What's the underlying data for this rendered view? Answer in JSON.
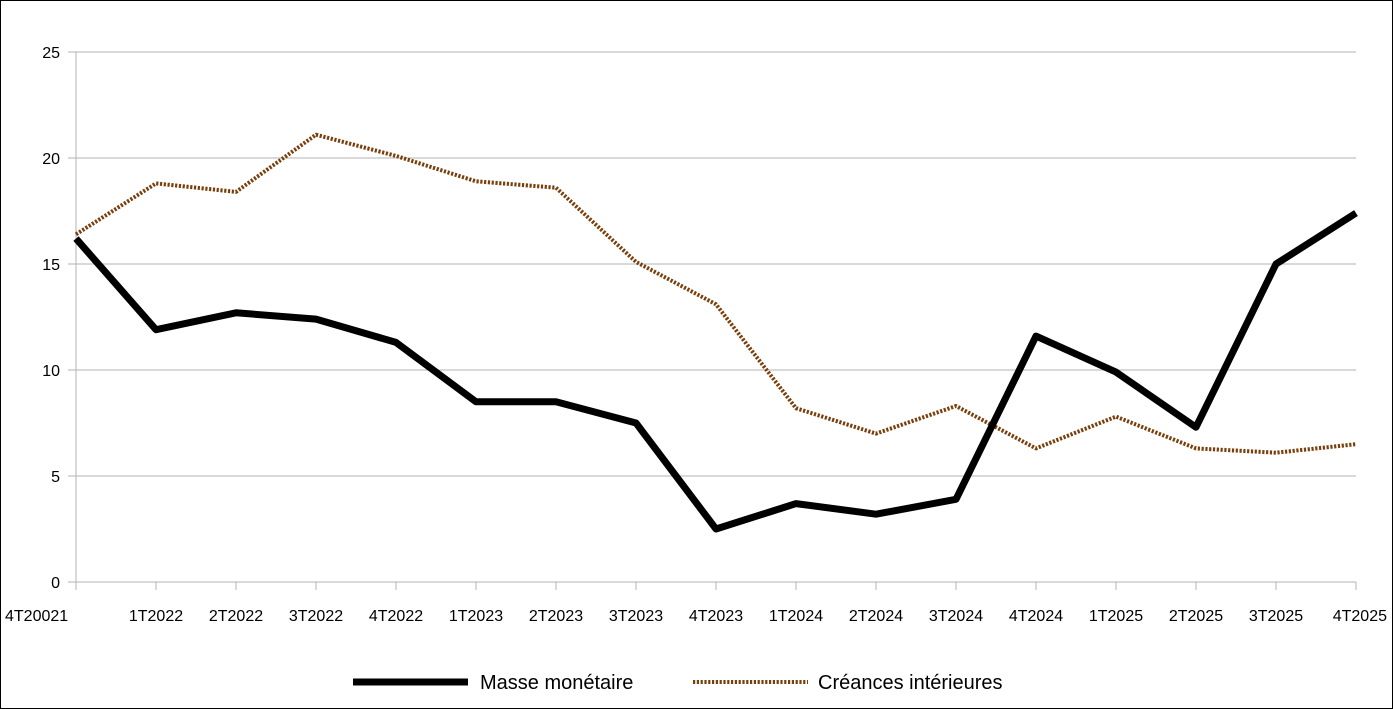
{
  "chart_data": {
    "type": "line",
    "title": "",
    "xlabel": "",
    "ylabel": "",
    "categories": [
      "4T20021",
      "1T2022",
      "2T2022",
      "3T2022",
      "4T2022",
      "1T2023",
      "2T2023",
      "3T2023",
      "4T2023",
      "1T2024",
      "2T2024",
      "3T2024",
      "4T2024",
      "1T2025",
      "2T2025",
      "3T2025",
      "4T2025"
    ],
    "ylim": [
      0,
      25
    ],
    "yticks": [
      0,
      5,
      10,
      15,
      20,
      25
    ],
    "grid": true,
    "legend_position": "bottom",
    "series": [
      {
        "name": "Masse monétaire",
        "color": "#000000",
        "style": "solid",
        "values": [
          16.2,
          11.9,
          12.7,
          12.4,
          11.3,
          8.5,
          8.5,
          7.5,
          2.5,
          3.7,
          3.2,
          3.9,
          11.6,
          9.9,
          7.3,
          15.0,
          17.4
        ]
      },
      {
        "name": "Créances intérieures",
        "color": "#7a3e0a",
        "style": "dotted",
        "values": [
          16.4,
          18.8,
          18.4,
          21.1,
          20.1,
          18.9,
          18.6,
          15.1,
          13.1,
          8.2,
          7.0,
          8.3,
          6.3,
          7.8,
          6.3,
          6.1,
          6.5
        ]
      }
    ]
  }
}
